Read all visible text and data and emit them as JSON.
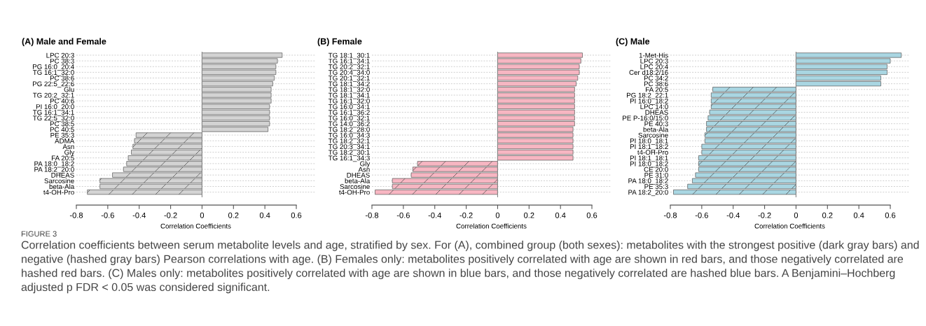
{
  "chart_data": [
    {
      "type": "bar",
      "orientation": "horizontal",
      "title": "(A) Male and Female",
      "xlabel": "Correlation Coefficients",
      "categories": [
        "LPC 20:3",
        "PC 38:3",
        "PG 16:0_20:4",
        "TG 16:1_32:0",
        "PC 38:6",
        "PG 22:5_22:6",
        "Glu",
        "TG 20:2_32:1",
        "PC 40:6",
        "PI 16:0_20:0",
        "TG 16:1_34:1",
        "TG 22:5_32:0",
        "PC 38:5",
        "PC 40:5",
        "PE 35:3",
        "ADMA",
        "Asn",
        "Gly",
        "FA 20:5",
        "PA 18:0_18:2",
        "PA 18:2_20:0",
        "DHEAS",
        "Sarcosine",
        "beta-Ala",
        "t4-OH-Pro"
      ],
      "series": [
        {
          "color": "#d3d3d3",
          "values": [
            0.51,
            0.48,
            0.47,
            0.47,
            0.46,
            0.45,
            0.44,
            0.44,
            0.44,
            0.43,
            0.43,
            0.43,
            0.43,
            0.42,
            -0.42,
            -0.43,
            -0.44,
            -0.45,
            -0.47,
            -0.48,
            -0.5,
            -0.57,
            -0.65,
            -0.65,
            -0.73
          ]
        }
      ],
      "xlim": [
        -0.8,
        0.72
      ],
      "xticks": [
        -0.8,
        -0.6,
        -0.4,
        -0.2,
        0,
        0.2,
        0.4,
        0.6
      ],
      "grid": "y",
      "annotations": [
        "FIGURE 3",
        "Correlation coefficients between serum metabolite levels and age, stratified by sex. For (A), combined group (both sexes): metabolites with the strongest positive (dark gray bars) and negative (hashed gray bars) Pearson correlations with age. (B) Females only: metabolites positively correlated with age are shown in red bars, and those negatively correlated are hashed red bars. (C) Males only: metabolites positively correlated with age are shown in blue bars, and those negatively correlated are hashed blue bars. A Benjamini–Hochberg adjusted p FDR < 0.05 was considered significant."
      ]
    },
    {
      "type": "bar",
      "orientation": "horizontal",
      "title": "(B) Female",
      "xlabel": "Correlation Coefficients",
      "categories": [
        "TG 18:1_30:1",
        "TG 16:1_34:1",
        "TG 20:2_32:1",
        "TG 20:4_34:0",
        "TG 20:1_32:1",
        "TG 18:1_34:2",
        "TG 18:1_32:0",
        "TG 18:1_34:1",
        "TG 16:1_32:0",
        "TG 16:0_34:1",
        "TG 16:1_36:2",
        "TG 16:0_32:1",
        "TG 14:0_36:2",
        "TG 18:2_28:0",
        "TG 16:0_34:3",
        "TG 18:2_32:1",
        "TG 20:3_34:1",
        "TG 18:2_30:1",
        "TG 16:1_34:3",
        "Gly",
        "Asn",
        "DHEAS",
        "beta-Ala",
        "Sarcosine",
        "t4-OH-Pro"
      ],
      "series": [
        {
          "color": "#f7b6c2",
          "values": [
            0.54,
            0.53,
            0.52,
            0.52,
            0.51,
            0.5,
            0.49,
            0.49,
            0.49,
            0.49,
            0.49,
            0.49,
            0.49,
            0.48,
            0.48,
            0.48,
            0.48,
            0.48,
            0.48,
            -0.51,
            -0.54,
            -0.55,
            -0.67,
            -0.67,
            -0.78
          ]
        }
      ],
      "xlim": [
        -0.8,
        0.72
      ],
      "xticks": [
        -0.8,
        -0.6,
        -0.4,
        -0.2,
        0,
        0.2,
        0.4,
        0.6
      ],
      "grid": "y"
    },
    {
      "type": "bar",
      "orientation": "horizontal",
      "title": "(C) Male",
      "xlabel": "Correlation Coefficients",
      "categories": [
        "1-Met-His",
        "LPC 20:3",
        "LPC 20:4",
        "Cer d18:2/16",
        "PC 34:2",
        "PC 38:6",
        "FA 20:5",
        "PG 18:2_22:1",
        "PI 16:0_18:2",
        "LPC 14:0",
        "DHEAS",
        "PE P-16:0/15:0",
        "PE 40:3",
        "beta-Ala",
        "Sarcosine",
        "PI 18:0_18:1",
        "PI 18:1_18:2",
        "t4-OH-Pro",
        "PI 18:1_18:1",
        "PI 18:0_18:2",
        "CE 20:0",
        "PE 31:0",
        "PA 18:0_18:2",
        "PE 35:3",
        "PA 18:2_20:0"
      ],
      "series": [
        {
          "color": "#a9d6e2",
          "values": [
            0.67,
            0.6,
            0.58,
            0.58,
            0.54,
            0.54,
            -0.53,
            -0.54,
            -0.54,
            -0.54,
            -0.55,
            -0.56,
            -0.57,
            -0.57,
            -0.58,
            -0.58,
            -0.6,
            -0.6,
            -0.62,
            -0.62,
            -0.62,
            -0.64,
            -0.66,
            -0.69,
            -0.78
          ]
        }
      ],
      "xlim": [
        -0.8,
        0.72
      ],
      "xticks": [
        -0.8,
        -0.6,
        -0.4,
        -0.2,
        0,
        0.2,
        0.4,
        0.6
      ],
      "grid": "y"
    }
  ]
}
